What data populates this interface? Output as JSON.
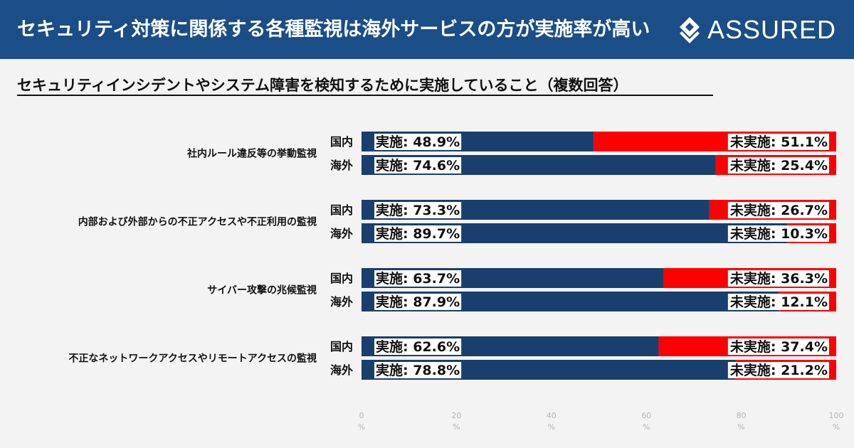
{
  "header": {
    "title": "セキュリティ対策に関係する各種監視は海外サービスの方が実施率が高い",
    "logo_text": "ASSURED"
  },
  "colors": {
    "header_bg": "#1b4d86",
    "implemented": "#183f6e",
    "not_implemented": "#ff0000",
    "label_box": "#ffffff"
  },
  "chart_data": {
    "type": "bar",
    "orientation": "horizontal",
    "stacked": true,
    "title": "セキュリティインシデントやシステム障害を検知するために実施していること（複数回答）",
    "categories": [
      "社内ルール違反等の挙動監視",
      "内部および外部からの不正アクセスや不正利用の監視",
      "サイバー攻撃の兆候監視",
      "不正なネットワークアクセスやリモートアクセスの監視"
    ],
    "groups": [
      "国内",
      "海外"
    ],
    "series": [
      {
        "name": "実施",
        "values": [
          [
            48.9,
            74.6
          ],
          [
            73.3,
            89.7
          ],
          [
            63.7,
            87.9
          ],
          [
            62.6,
            78.8
          ]
        ]
      },
      {
        "name": "未実施",
        "values": [
          [
            51.1,
            25.4
          ],
          [
            26.7,
            10.3
          ],
          [
            36.3,
            12.1
          ],
          [
            37.4,
            21.2
          ]
        ]
      }
    ],
    "xlim": [
      0,
      100
    ],
    "xticks": [
      0,
      20,
      40,
      60,
      80,
      100
    ],
    "tick_unit": "%",
    "grid": false
  }
}
